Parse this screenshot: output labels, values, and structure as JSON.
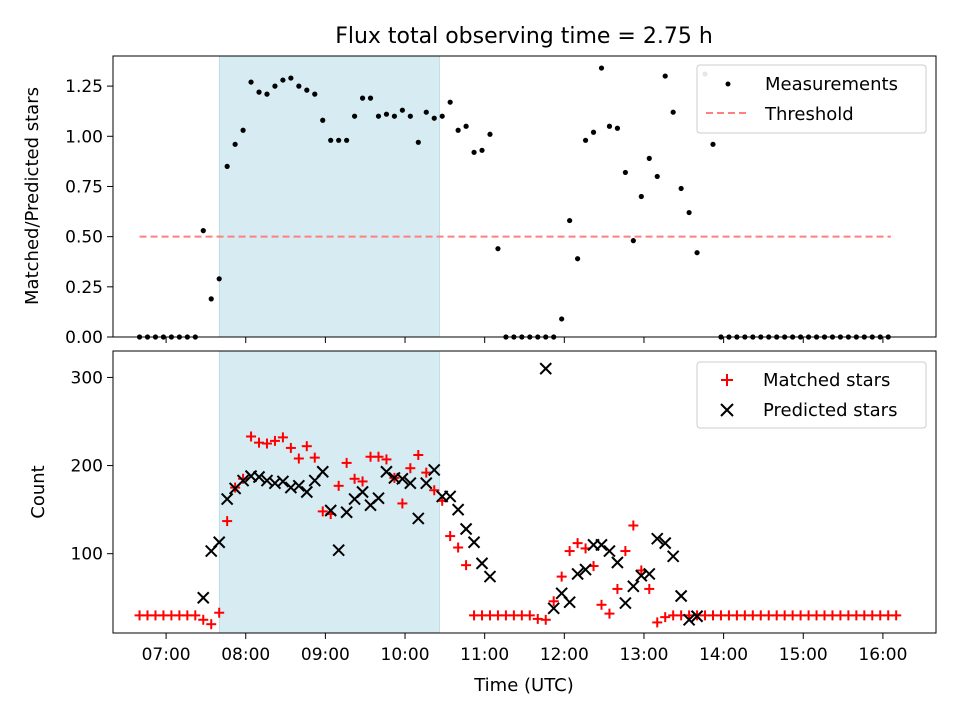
{
  "figure": {
    "title": "Flux total observing time = 2.75 h"
  },
  "chart_data": [
    {
      "type": "scatter",
      "ylabel": "Matched/Predicted stars",
      "xlabel": "",
      "xlim": [
        "06:20",
        "16:40"
      ],
      "ylim": [
        0,
        1.4
      ],
      "yticks": [
        0.0,
        0.25,
        0.5,
        0.75,
        1.0,
        1.25
      ],
      "ytick_labels": [
        "0.00",
        "0.25",
        "0.50",
        "0.75",
        "1.00",
        "1.25"
      ],
      "grid": false,
      "legend_position": "top-right",
      "shaded_region": {
        "x_start": "07:40",
        "x_end": "10:26",
        "color": "#add8e6"
      },
      "series": [
        {
          "name": "Measurements",
          "marker": "dot",
          "color": "#000000",
          "x": [
            "06:40",
            "06:46",
            "06:52",
            "06:58",
            "07:04",
            "07:10",
            "07:16",
            "07:22",
            "07:28",
            "07:34",
            "07:40",
            "07:46",
            "07:52",
            "07:58",
            "08:04",
            "08:10",
            "08:16",
            "08:22",
            "08:28",
            "08:34",
            "08:40",
            "08:46",
            "08:52",
            "08:58",
            "09:04",
            "09:10",
            "09:16",
            "09:22",
            "09:28",
            "09:34",
            "09:40",
            "09:46",
            "09:52",
            "09:58",
            "10:04",
            "10:10",
            "10:16",
            "10:22",
            "10:28",
            "10:34",
            "10:40",
            "10:46",
            "10:52",
            "10:58",
            "11:04",
            "11:10",
            "11:16",
            "11:22",
            "11:28",
            "11:34",
            "11:40",
            "11:46",
            "11:52",
            "11:58",
            "12:04",
            "12:10",
            "12:16",
            "12:22",
            "12:28",
            "12:34",
            "12:40",
            "12:46",
            "12:52",
            "12:58",
            "13:04",
            "13:10",
            "13:16",
            "13:22",
            "13:28",
            "13:34",
            "13:40",
            "13:46",
            "13:52",
            "13:58",
            "14:04",
            "14:10",
            "14:16",
            "14:22",
            "14:28",
            "14:34",
            "14:40",
            "14:46",
            "14:52",
            "14:58",
            "15:04",
            "15:10",
            "15:16",
            "15:22",
            "15:28",
            "15:34",
            "15:40",
            "15:46",
            "15:52",
            "15:58",
            "16:04"
          ],
          "values": [
            0,
            0,
            0,
            0,
            0,
            0,
            0,
            0,
            0.53,
            0.19,
            0.29,
            0.85,
            0.96,
            1.03,
            1.27,
            1.22,
            1.21,
            1.25,
            1.28,
            1.29,
            1.25,
            1.23,
            1.21,
            1.08,
            0.98,
            0.98,
            0.98,
            1.1,
            1.19,
            1.19,
            1.1,
            1.11,
            1.1,
            1.13,
            1.1,
            0.97,
            1.12,
            1.09,
            1.1,
            1.17,
            1.03,
            1.05,
            0.92,
            0.93,
            1.01,
            0.44,
            0,
            0,
            0,
            0,
            0,
            0,
            0,
            0.09,
            0.58,
            0.39,
            0.98,
            1.02,
            1.34,
            1.05,
            1.04,
            0.82,
            0.48,
            0.7,
            0.89,
            0.8,
            1.3,
            1.12,
            0.74,
            0.62,
            0.42,
            1.31,
            0.96,
            0,
            0,
            0,
            0,
            0,
            0,
            0,
            0,
            0,
            0,
            0,
            0,
            0,
            0,
            0,
            0,
            0,
            0,
            0,
            0,
            0,
            0
          ],
          "x2": [
            "06:40",
            "06:46",
            "06:52",
            "06:58",
            "07:04",
            "07:10",
            "07:16",
            "07:22",
            "07:28",
            "07:34",
            "07:40",
            "07:46",
            "07:52",
            "07:58",
            "08:04",
            "08:10",
            "08:16",
            "08:22",
            "08:28",
            "08:34",
            "08:40",
            "08:46",
            "08:52",
            "08:58",
            "09:04",
            "09:10",
            "09:16",
            "09:22",
            "09:28",
            "09:34",
            "09:40",
            "09:46",
            "09:52",
            "09:58",
            "10:04",
            "10:10",
            "10:16",
            "10:22",
            "10:28",
            "10:34",
            "10:40",
            "10:46",
            "10:52",
            "10:58",
            "11:04",
            "11:10",
            "11:16",
            "11:22",
            "11:28",
            "11:34",
            "11:40",
            "11:46",
            "11:52",
            "11:58",
            "12:04",
            "12:10",
            "12:16",
            "12:22",
            "12:28",
            "12:34",
            "12:40",
            "12:46",
            "12:52",
            "12:58",
            "13:04",
            "13:10",
            "13:16",
            "13:22",
            "13:28",
            "13:34",
            "13:40",
            "13:46",
            "13:52",
            "13:58",
            "14:04",
            "14:10",
            "14:16",
            "14:22",
            "14:28",
            "14:34",
            "14:40",
            "14:46",
            "14:52",
            "14:58",
            "15:04",
            "15:10",
            "15:16",
            "15:22",
            "15:28",
            "15:34",
            "15:40",
            "15:46",
            "15:52",
            "15:58",
            "16:04"
          ]
        },
        {
          "name": "Threshold",
          "style": "dashed-line",
          "color": "#ff7f7f",
          "x": [
            "06:40",
            "16:06"
          ],
          "values": [
            0.5,
            0.5
          ]
        }
      ]
    },
    {
      "type": "scatter",
      "ylabel": "Count",
      "xlabel": "Time (UTC)",
      "xlim": [
        "06:20",
        "16:40"
      ],
      "ylim": [
        10,
        330
      ],
      "yticks": [
        100,
        200,
        300
      ],
      "ytick_labels": [
        "100",
        "200",
        "300"
      ],
      "xticks": [
        "07:00",
        "08:00",
        "09:00",
        "10:00",
        "11:00",
        "12:00",
        "13:00",
        "14:00",
        "15:00",
        "16:00"
      ],
      "grid": false,
      "legend_position": "top-right",
      "shaded_region": {
        "x_start": "07:40",
        "x_end": "10:26",
        "color": "#add8e6"
      },
      "series": [
        {
          "name": "Matched stars",
          "marker": "plus",
          "color": "#ff0000",
          "points": [
            [
              "06:40",
              30
            ],
            [
              "06:46",
              30
            ],
            [
              "06:52",
              30
            ],
            [
              "06:58",
              30
            ],
            [
              "07:04",
              30
            ],
            [
              "07:10",
              30
            ],
            [
              "07:16",
              30
            ],
            [
              "07:22",
              30
            ],
            [
              "07:28",
              25
            ],
            [
              "07:34",
              20
            ],
            [
              "07:40",
              33
            ],
            [
              "07:46",
              137
            ],
            [
              "07:52",
              175
            ],
            [
              "07:58",
              185
            ],
            [
              "08:04",
              233
            ],
            [
              "08:10",
              226
            ],
            [
              "08:16",
              225
            ],
            [
              "08:22",
              228
            ],
            [
              "08:28",
              232
            ],
            [
              "08:34",
              220
            ],
            [
              "08:40",
              208
            ],
            [
              "08:46",
              222
            ],
            [
              "08:52",
              209
            ],
            [
              "08:58",
              148
            ],
            [
              "09:04",
              145
            ],
            [
              "09:10",
              177
            ],
            [
              "09:16",
              203
            ],
            [
              "09:22",
              185
            ],
            [
              "09:28",
              182
            ],
            [
              "09:34",
              210
            ],
            [
              "09:40",
              210
            ],
            [
              "09:46",
              207
            ],
            [
              "09:52",
              186
            ],
            [
              "09:58",
              157
            ],
            [
              "10:04",
              197
            ],
            [
              "10:10",
              212
            ],
            [
              "10:16",
              192
            ],
            [
              "10:22",
              172
            ],
            [
              "10:28",
              160
            ],
            [
              "10:34",
              120
            ],
            [
              "10:40",
              107
            ],
            [
              "10:46",
              87
            ],
            [
              "10:52",
              30
            ],
            [
              "10:58",
              30
            ],
            [
              "11:04",
              30
            ],
            [
              "11:10",
              30
            ],
            [
              "11:16",
              30
            ],
            [
              "11:22",
              30
            ],
            [
              "11:28",
              30
            ],
            [
              "11:34",
              30
            ],
            [
              "11:40",
              26
            ],
            [
              "11:46",
              25
            ],
            [
              "11:52",
              46
            ],
            [
              "11:58",
              74
            ],
            [
              "12:04",
              103
            ],
            [
              "12:10",
              112
            ],
            [
              "12:16",
              106
            ],
            [
              "12:22",
              86
            ],
            [
              "12:28",
              42
            ],
            [
              "12:34",
              32
            ],
            [
              "12:40",
              60
            ],
            [
              "12:46",
              103
            ],
            [
              "12:52",
              132
            ],
            [
              "12:58",
              81
            ],
            [
              "13:04",
              60
            ],
            [
              "13:10",
              22
            ],
            [
              "13:16",
              28
            ],
            [
              "13:22",
              30
            ],
            [
              "13:28",
              30
            ],
            [
              "13:34",
              30
            ],
            [
              "13:40",
              30
            ],
            [
              "13:46",
              30
            ],
            [
              "13:52",
              30
            ],
            [
              "13:58",
              30
            ],
            [
              "14:04",
              30
            ],
            [
              "14:10",
              30
            ],
            [
              "14:16",
              30
            ],
            [
              "14:22",
              30
            ],
            [
              "14:28",
              30
            ],
            [
              "14:34",
              30
            ],
            [
              "14:40",
              30
            ],
            [
              "14:46",
              30
            ],
            [
              "14:52",
              30
            ],
            [
              "14:58",
              30
            ],
            [
              "15:04",
              30
            ],
            [
              "15:10",
              30
            ],
            [
              "15:16",
              30
            ],
            [
              "15:22",
              30
            ],
            [
              "15:28",
              30
            ],
            [
              "15:34",
              30
            ],
            [
              "15:40",
              30
            ],
            [
              "15:46",
              30
            ],
            [
              "15:52",
              30
            ],
            [
              "15:58",
              30
            ],
            [
              "16:04",
              30
            ],
            [
              "16:10",
              30
            ]
          ]
        },
        {
          "name": "Predicted stars",
          "marker": "x",
          "color": "#000000",
          "points": [
            [
              "07:28",
              50
            ],
            [
              "07:34",
              103
            ],
            [
              "07:40",
              113
            ],
            [
              "07:46",
              162
            ],
            [
              "07:52",
              174
            ],
            [
              "07:58",
              183
            ],
            [
              "08:04",
              188
            ],
            [
              "08:10",
              187
            ],
            [
              "08:16",
              183
            ],
            [
              "08:22",
              180
            ],
            [
              "08:28",
              182
            ],
            [
              "08:34",
              175
            ],
            [
              "08:40",
              177
            ],
            [
              "08:46",
              170
            ],
            [
              "08:52",
              183
            ],
            [
              "08:58",
              193
            ],
            [
              "09:04",
              149
            ],
            [
              "09:10",
              104
            ],
            [
              "09:16",
              147
            ],
            [
              "09:22",
              162
            ],
            [
              "09:28",
              170
            ],
            [
              "09:34",
              155
            ],
            [
              "09:40",
              163
            ],
            [
              "09:46",
              193
            ],
            [
              "09:52",
              186
            ],
            [
              "09:58",
              185
            ],
            [
              "10:04",
              180
            ],
            [
              "10:10",
              140
            ],
            [
              "10:16",
              180
            ],
            [
              "10:22",
              195
            ],
            [
              "10:28",
              165
            ],
            [
              "10:34",
              165
            ],
            [
              "10:40",
              150
            ],
            [
              "10:46",
              128
            ],
            [
              "10:52",
              113
            ],
            [
              "10:58",
              89
            ],
            [
              "11:04",
              74
            ],
            [
              "11:46",
              310
            ],
            [
              "11:52",
              38
            ],
            [
              "11:58",
              55
            ],
            [
              "12:04",
              45
            ],
            [
              "12:10",
              77
            ],
            [
              "12:16",
              82
            ],
            [
              "12:22",
              110
            ],
            [
              "12:28",
              110
            ],
            [
              "12:34",
              103
            ],
            [
              "12:40",
              90
            ],
            [
              "12:46",
              44
            ],
            [
              "12:52",
              63
            ],
            [
              "12:58",
              75
            ],
            [
              "13:04",
              77
            ],
            [
              "13:10",
              117
            ],
            [
              "13:16",
              112
            ],
            [
              "13:22",
              97
            ],
            [
              "13:28",
              52
            ],
            [
              "13:34",
              25
            ],
            [
              "13:40",
              29
            ]
          ]
        }
      ]
    }
  ]
}
